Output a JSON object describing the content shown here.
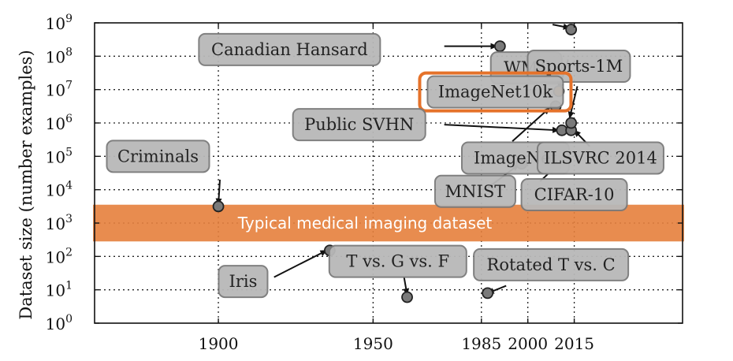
{
  "chart_data": {
    "type": "scatter",
    "title": "",
    "xlabel": "",
    "ylabel": "Dataset size (number examples)",
    "y_scale": "log",
    "xlim": [
      1860,
      2050
    ],
    "ylim": [
      0,
      9
    ],
    "x_ticks": [
      {
        "value": 1900,
        "label": "1900"
      },
      {
        "value": 1950,
        "label": "1950"
      },
      {
        "value": 1985,
        "label": "1985"
      },
      {
        "value": 2000,
        "label": "2000"
      },
      {
        "value": 2015,
        "label": "2015"
      }
    ],
    "y_ticks": [
      {
        "exp": 0,
        "base": "10",
        "sup": "0"
      },
      {
        "exp": 1,
        "base": "10",
        "sup": "1"
      },
      {
        "exp": 2,
        "base": "10",
        "sup": "2"
      },
      {
        "exp": 3,
        "base": "10",
        "sup": "3"
      },
      {
        "exp": 4,
        "base": "10",
        "sup": "4"
      },
      {
        "exp": 5,
        "base": "10",
        "sup": "5"
      },
      {
        "exp": 6,
        "base": "10",
        "sup": "6"
      },
      {
        "exp": 7,
        "base": "10",
        "sup": "7"
      },
      {
        "exp": 8,
        "base": "10",
        "sup": "8"
      },
      {
        "exp": 9,
        "base": "10",
        "sup": "9"
      }
    ],
    "grid": true,
    "band": {
      "label": "Typical medical imaging dataset",
      "y_low": 2.45,
      "y_high": 3.55,
      "color": "#e67f3c"
    },
    "colors": {
      "point": "#7a7a7a",
      "highlight": "#f07f2a",
      "box_fill": "#b8b8b8",
      "box_stroke": "#7a7a7a",
      "highlight_border": "#e5722a"
    },
    "points": [
      {
        "name": "Criminals",
        "year": 1900,
        "log10_size": 3.5
      },
      {
        "name": "Iris",
        "year": 1936,
        "log10_size": 2.18
      },
      {
        "name": "T vs. G vs. F",
        "year": 1961,
        "log10_size": 0.78
      },
      {
        "name": "Rotated T vs. C",
        "year": 1987,
        "log10_size": 0.9
      },
      {
        "name": "MNIST",
        "year": 1998,
        "log10_size": 4.78
      },
      {
        "name": "Canadian Hansard",
        "year": 1991,
        "log10_size": 8.3
      },
      {
        "name": "Public SVHN",
        "year": 2011,
        "log10_size": 5.78
      },
      {
        "name": "CIFAR-10",
        "year": 2009,
        "log10_size": 4.7
      },
      {
        "name": "ImageNet",
        "year": 2009,
        "log10_size": 6.5
      },
      {
        "name": "ImageNet10k",
        "year": 2010,
        "log10_size": 6.95,
        "highlight": true
      },
      {
        "name": "ILSVRC 2014",
        "year": 2014,
        "log10_size": 5.78
      },
      {
        "name": "Sports-1M",
        "year": 2014,
        "log10_size": 6.0
      },
      {
        "name": "WMT",
        "year": 2014,
        "log10_size": 8.8
      }
    ],
    "labels": [
      {
        "text": "Canadian Hansard",
        "x": 1923,
        "y": 8.2,
        "w": 230
      },
      {
        "text": "WMT",
        "x": 1999.5,
        "y": 7.65,
        "w": 90
      },
      {
        "text": "Sports-1M",
        "x": 2016.5,
        "y": 7.7,
        "w": 130
      },
      {
        "text": "ImageNet10k",
        "x": 1989.5,
        "y": 6.93,
        "w": 172,
        "highlight": true
      },
      {
        "text": "Public SVHN",
        "x": 1945.5,
        "y": 5.95,
        "w": 168
      },
      {
        "text": "Criminals",
        "x": 1880.5,
        "y": 5.0,
        "w": 130
      },
      {
        "text": "ImageNet",
        "x": 1996,
        "y": 4.95,
        "w": 136
      },
      {
        "text": "ILSVRC 2014",
        "x": 2023.5,
        "y": 4.95,
        "w": 160
      },
      {
        "text": "MNIST",
        "x": 1983,
        "y": 3.95,
        "w": 102
      },
      {
        "text": "CIFAR-10",
        "x": 2015,
        "y": 3.85,
        "w": 134
      },
      {
        "text": "T vs. G vs. F",
        "x": 1958,
        "y": 1.85,
        "w": 174
      },
      {
        "text": "Rotated T vs. C",
        "x": 2007.5,
        "y": 1.75,
        "w": 196
      },
      {
        "text": "Iris",
        "x": 1908,
        "y": 1.25,
        "w": 62
      }
    ],
    "arrows": [
      {
        "from": [
          1900.5,
          4.3
        ],
        "to": [
          1900,
          3.55
        ]
      },
      {
        "from": [
          1918,
          1.38
        ],
        "to": [
          1935,
          2.18
        ]
      },
      {
        "from": [
          1960,
          1.38
        ],
        "to": [
          1961,
          0.85
        ]
      },
      {
        "from": [
          1993,
          1.12
        ],
        "to": [
          1987,
          0.9
        ]
      },
      {
        "from": [
          1987,
          4.05
        ],
        "to": [
          1997,
          4.75
        ]
      },
      {
        "from": [
          1973,
          8.3
        ],
        "to": [
          1990,
          8.3
        ]
      },
      {
        "from": [
          1973,
          5.95
        ],
        "to": [
          2010,
          5.78
        ]
      },
      {
        "from": [
          1995,
          5.45
        ],
        "to": [
          2007,
          6.45
        ]
      },
      {
        "from": [
          2004,
          4.25
        ],
        "to": [
          2008.5,
          4.65
        ]
      },
      {
        "from": [
          2013,
          7.9
        ],
        "to": [
          2010,
          7.0
        ]
      },
      {
        "from": [
          2016,
          7.1
        ],
        "to": [
          2013.5,
          6.15
        ]
      },
      {
        "from": [
          2020,
          5.3
        ],
        "to": [
          2015,
          5.78
        ]
      },
      {
        "from": [
          2008,
          8.95
        ],
        "to": [
          2013.5,
          8.85
        ]
      }
    ]
  }
}
